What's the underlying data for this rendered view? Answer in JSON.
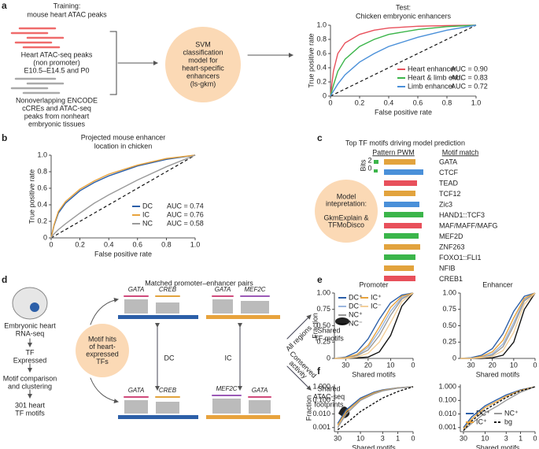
{
  "chart_data": [
    {
      "type": "line",
      "title": [
        "Test:",
        "Chicken embryonic enhancers"
      ],
      "x_label": "False positive rate",
      "y_label": "True positive rate",
      "x": [
        0,
        0.02,
        0.05,
        0.1,
        0.2,
        0.3,
        0.4,
        0.6,
        0.8,
        1
      ],
      "series": [
        {
          "name": "Heart enhancer",
          "legend_value": "AUC = 0.90",
          "color": "#e8505b",
          "values": [
            0,
            0.35,
            0.6,
            0.75,
            0.87,
            0.93,
            0.96,
            0.985,
            0.995,
            1
          ]
        },
        {
          "name": "Heart & limb enh.",
          "legend_value": "AUC = 0.83",
          "color": "#3bb54a",
          "values": [
            0,
            0.15,
            0.35,
            0.52,
            0.7,
            0.8,
            0.87,
            0.94,
            0.98,
            1
          ]
        },
        {
          "name": "Limb enhancer",
          "legend_value": "AUC = 0.72",
          "color": "#4a90d9",
          "values": [
            0,
            0.07,
            0.17,
            0.3,
            0.48,
            0.6,
            0.7,
            0.83,
            0.93,
            1
          ]
        }
      ],
      "xlim": [
        0,
        1
      ],
      "ylim": [
        0,
        1
      ],
      "xticks": [
        0,
        0.2,
        0.4,
        0.6,
        0.8,
        {
          "value": 1,
          "label": "1.0"
        }
      ],
      "yticks": [
        0,
        0.2,
        0.4,
        0.6,
        0.8,
        {
          "value": 1,
          "label": "1.0"
        }
      ],
      "reference_line": true,
      "legend": "lower right"
    },
    {
      "type": "line",
      "title": [
        "Projected mouse enhancer",
        "location in chicken"
      ],
      "x_label": "False positive rate",
      "y_label": "True positive rate",
      "x": [
        0,
        0.02,
        0.05,
        0.1,
        0.2,
        0.3,
        0.4,
        0.6,
        0.8,
        1
      ],
      "series": [
        {
          "name": "DC",
          "legend_value": "AUC = 0.74",
          "color": "#2c5fa8",
          "values": [
            0,
            0.15,
            0.3,
            0.42,
            0.57,
            0.67,
            0.75,
            0.87,
            0.95,
            1
          ]
        },
        {
          "name": "IC",
          "legend_value": "AUC = 0.76",
          "color": "#e8a33d",
          "values": [
            0,
            0.16,
            0.32,
            0.44,
            0.59,
            0.69,
            0.77,
            0.88,
            0.96,
            1
          ]
        },
        {
          "name": "NC",
          "legend_value": "AUC = 0.58",
          "color": "#9a9a9a",
          "values": [
            0,
            0.05,
            0.1,
            0.17,
            0.3,
            0.42,
            0.52,
            0.7,
            0.86,
            1
          ]
        }
      ],
      "xlim": [
        0,
        1
      ],
      "ylim": [
        0,
        1
      ],
      "xticks": [
        0,
        0.2,
        0.4,
        0.6,
        0.8,
        {
          "value": 1,
          "label": "1.0"
        }
      ],
      "yticks": [
        0,
        0.2,
        0.4,
        0.6,
        0.8,
        {
          "value": 1,
          "label": "1.0"
        }
      ],
      "reference_line": true,
      "legend": "lower right"
    },
    {
      "type": "line",
      "title": "Promoter",
      "x_label": "Shared motifs",
      "y_label": "Fraction",
      "x": [
        35,
        30,
        25,
        20,
        15,
        10,
        5,
        0
      ],
      "series": [
        {
          "name": "DC⁺",
          "color": "#2c5fa8",
          "values": [
            0,
            0.02,
            0.1,
            0.3,
            0.6,
            0.85,
            0.97,
            1
          ]
        },
        {
          "name": "DC⁻",
          "color": "#9bb6de",
          "values": [
            0,
            0.01,
            0.05,
            0.17,
            0.42,
            0.72,
            0.93,
            1
          ]
        },
        {
          "name": "NC⁺",
          "color": "#999999",
          "values": [
            0,
            0.01,
            0.04,
            0.13,
            0.35,
            0.66,
            0.91,
            1
          ]
        },
        {
          "name": "NC⁻",
          "color": "#111111",
          "values": [
            0,
            0,
            0.01,
            0.02,
            0.1,
            0.35,
            0.8,
            1
          ]
        },
        {
          "name": "IC⁺",
          "color": "#e8a33d",
          "values": [
            0,
            0.01,
            0.06,
            0.2,
            0.48,
            0.78,
            0.95,
            1
          ]
        },
        {
          "name": "IC⁻",
          "color": "#f3cf9a",
          "values": [
            0,
            0,
            0.02,
            0.08,
            0.25,
            0.55,
            0.87,
            1
          ]
        }
      ],
      "xlim": [
        35,
        0
      ],
      "ylim": [
        0,
        1
      ],
      "xticks": [
        30,
        20,
        10,
        0
      ],
      "yticks": [
        0,
        0.25,
        {
          "value": 0.5,
          "label": "0.50"
        },
        0.75,
        {
          "value": 1,
          "label": "1.00"
        }
      ],
      "legend": "upper left"
    },
    {
      "type": "line",
      "title": "Enhancer",
      "x_label": "Shared motifs",
      "x": [
        35,
        30,
        25,
        20,
        15,
        10,
        5,
        0
      ],
      "series": [
        {
          "color": "#2c5fa8",
          "values": [
            0,
            0.01,
            0.05,
            0.15,
            0.38,
            0.72,
            0.95,
            1
          ]
        },
        {
          "color": "#9bb6de",
          "values": [
            0,
            0,
            0.02,
            0.07,
            0.22,
            0.55,
            0.9,
            1
          ]
        },
        {
          "color": "#999999",
          "values": [
            0,
            0,
            0.01,
            0.05,
            0.18,
            0.5,
            0.88,
            1
          ]
        },
        {
          "color": "#111111",
          "values": [
            0,
            0,
            0,
            0.01,
            0.05,
            0.25,
            0.75,
            1
          ]
        },
        {
          "color": "#e8a33d",
          "values": [
            0,
            0,
            0.03,
            0.1,
            0.28,
            0.62,
            0.92,
            1
          ]
        },
        {
          "color": "#f3cf9a",
          "values": [
            0,
            0,
            0.01,
            0.03,
            0.12,
            0.4,
            0.83,
            1
          ]
        }
      ],
      "xlim": [
        35,
        0
      ],
      "ylim": [
        0,
        1
      ],
      "xticks": [
        30,
        20,
        10,
        0
      ],
      "yticks": [
        0,
        0.25,
        {
          "value": 0.5,
          "label": "0.50"
        },
        0.75,
        {
          "value": 1,
          "label": "1.00"
        }
      ]
    },
    {
      "type": "line",
      "x_label": "Shared motifs",
      "y_label": "Fraction",
      "x_scale": "log1p",
      "y_scale": "log",
      "x": [
        30,
        20,
        10,
        5,
        3,
        1,
        0
      ],
      "series": [
        {
          "color": "#2c5fa8",
          "values": [
            0.002,
            0.02,
            0.15,
            0.4,
            0.6,
            0.85,
            1
          ]
        },
        {
          "color": "#e8a33d",
          "values": [
            0.0015,
            0.015,
            0.12,
            0.35,
            0.55,
            0.82,
            1
          ]
        },
        {
          "color": "#999999",
          "values": [
            0.001,
            0.01,
            0.1,
            0.3,
            0.5,
            0.8,
            1
          ]
        },
        {
          "color": "#111111",
          "dash": true,
          "values": [
            0.0007,
            0.002,
            0.015,
            0.06,
            0.15,
            0.45,
            1
          ]
        }
      ],
      "xlim": [
        35,
        0
      ],
      "ylim": [
        0.0005,
        1.5
      ],
      "xticks": [
        30,
        10,
        3,
        1,
        0
      ],
      "yticks": [
        0.001,
        {
          "value": 0.01,
          "label": "0.010"
        },
        {
          "value": 0.1,
          "label": "0.100"
        },
        {
          "value": 1,
          "label": "1.000"
        }
      ]
    },
    {
      "type": "line",
      "x_label": "Shared motifs",
      "x_scale": "log1p",
      "y_scale": "log",
      "x": [
        30,
        20,
        10,
        5,
        3,
        1,
        0
      ],
      "series": [
        {
          "name": "DC⁺",
          "color": "#2c5fa8",
          "values": [
            0.001,
            0.006,
            0.04,
            0.12,
            0.25,
            0.6,
            1
          ]
        },
        {
          "name": "IC⁺",
          "color": "#e8a33d",
          "values": [
            0.0008,
            0.004,
            0.03,
            0.09,
            0.2,
            0.55,
            1
          ]
        },
        {
          "name": "NC⁺",
          "color": "#999999",
          "values": [
            0.0006,
            0.002,
            0.012,
            0.04,
            0.1,
            0.4,
            1
          ]
        },
        {
          "name": "bg",
          "color": "#111111",
          "dash": true,
          "values": [
            0.0006,
            0.003,
            0.02,
            0.07,
            0.16,
            0.5,
            1
          ]
        }
      ],
      "xlim": [
        35,
        0
      ],
      "ylim": [
        0.0005,
        1.5
      ],
      "xticks": [
        30,
        10,
        3,
        1,
        0
      ],
      "yticks": [
        0.001,
        {
          "value": 0.01,
          "label": "0.010"
        },
        {
          "value": 0.1,
          "label": "0.100"
        },
        {
          "value": 1,
          "label": "1.000"
        }
      ],
      "legend": "lower right"
    }
  ],
  "diagram": {
    "panel_labels": [
      "a",
      "b",
      "c",
      "d",
      "e",
      "f"
    ],
    "a": {
      "training": [
        "Training:",
        "mouse heart ATAC peaks"
      ],
      "positive": [
        "Heart ATAC-seq peaks",
        "(non promoter)",
        "E10.5–E14.5 and P0"
      ],
      "negative": [
        "Nonoverlapping ENCODE",
        "cCREs and ATAC-seq",
        "peaks from nonheart",
        "embryonic tissues"
      ],
      "model": [
        "SVM",
        "classification",
        "model for",
        "heart-specific",
        "enhancers",
        "(ls-gkm)"
      ]
    },
    "c": {
      "title": "Top TF motifs driving model prediction",
      "pwm_header": "Pattern PWM",
      "match_header": "Motif match",
      "bits": "Bits",
      "bits_ticks": [
        "2",
        "0"
      ],
      "motifs": [
        "GATA",
        "CTCF",
        "TEAD",
        "TCF12",
        "Zic3",
        "HAND1::TCF3",
        "MAF/MAFF/MAFG",
        "MEF2D",
        "ZNF263",
        "FOXO1::FLI1",
        "NFIB",
        "CREB1"
      ],
      "interpretation": [
        "Model",
        "intepretation:",
        "",
        "GkmExplain &",
        "TFMoDisco"
      ]
    },
    "d": {
      "rnaseq": [
        "Embryonic heart",
        "RNA-seq"
      ],
      "expressed": [
        "TF",
        "Expressed"
      ],
      "clustering": [
        "Motif comparison",
        "and clustering"
      ],
      "motifs": [
        "301 heart",
        "TF motifs"
      ],
      "hits": [
        "Motif hits",
        "of heart-",
        "expressed",
        "TFs"
      ],
      "pairs_title": "Matched promoter–enhancer pairs",
      "motif_names": [
        "GATA",
        "CREB",
        "GATA",
        "MEF2C",
        "GATA",
        "CREB",
        "MEF2C",
        "GATA"
      ],
      "dc": "DC",
      "ic": "IC",
      "all_regions": "All regions",
      "conserved": [
        "Conserved",
        "activity"
      ],
      "shared_motifs": [
        "Shared",
        "TF motifs"
      ],
      "shared_footprints": [
        "Shared",
        "ATAC-seq",
        "footprints"
      ]
    }
  }
}
